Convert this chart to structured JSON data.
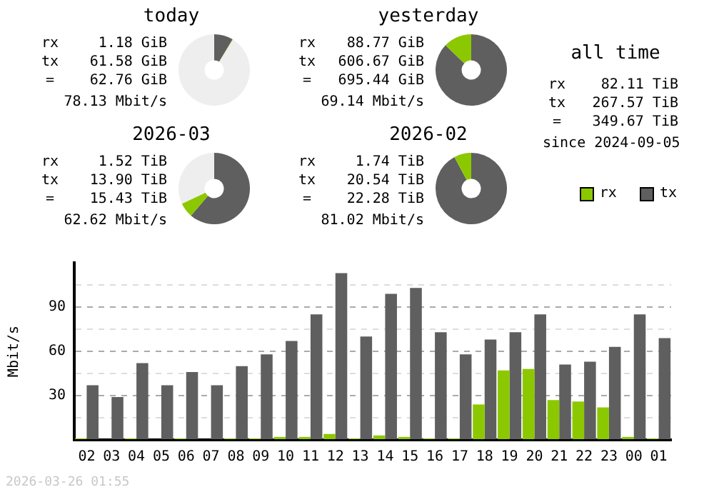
{
  "chart_data": [
    {
      "type": "donut",
      "title": "today",
      "categories": [
        null,
        null,
        null
      ],
      "values": [
        8.6,
        0.2,
        91.2
      ],
      "colors": [
        "#5f5f5f",
        "#8cc800",
        "#eeeeee"
      ],
      "annotations": [
        "rx",
        "1.18 GiB",
        "tx",
        "61.58 GiB",
        "=",
        "62.76 GiB",
        "78.13 Mbit/s"
      ]
    },
    {
      "type": "donut",
      "title": "yesterday",
      "categories": [
        null,
        null
      ],
      "values": [
        87.2,
        12.8
      ],
      "colors": [
        "#5f5f5f",
        "#8cc800"
      ],
      "annotations": [
        "rx",
        "88.77 GiB",
        "tx",
        "606.67 GiB",
        "=",
        "695.44 GiB",
        "69.14 Mbit/s"
      ]
    },
    {
      "type": "other",
      "title": "all time",
      "annotations": [
        "rx",
        "82.11 TiB",
        "tx",
        "267.57 TiB",
        "=",
        "349.67 TiB",
        "since 2024-09-05"
      ]
    },
    {
      "type": "donut",
      "title": "2026-03",
      "categories": [
        null,
        null,
        null
      ],
      "values": [
        61.3,
        6.7,
        32.0
      ],
      "colors": [
        "#5f5f5f",
        "#8cc800",
        "#eeeeee"
      ],
      "annotations": [
        "rx",
        "1.52 TiB",
        "tx",
        "13.90 TiB",
        "=",
        "15.43 TiB",
        "62.62 Mbit/s"
      ]
    },
    {
      "type": "donut",
      "title": "2026-02",
      "categories": [
        null,
        null
      ],
      "values": [
        92.2,
        7.8
      ],
      "colors": [
        "#5f5f5f",
        "#8cc800"
      ],
      "annotations": [
        "rx",
        "1.74 TiB",
        "tx",
        "20.54 TiB",
        "=",
        "22.28 TiB",
        "81.02 Mbit/s"
      ]
    },
    {
      "type": "bar",
      "ylabel": "Mbit/s",
      "categories": [
        "02",
        "03",
        "04",
        "05",
        "06",
        "07",
        "08",
        "09",
        "10",
        "11",
        "12",
        "13",
        "14",
        "15",
        "16",
        "17",
        "18",
        "19",
        "20",
        "21",
        "22",
        "23",
        "00",
        "01"
      ],
      "series": [
        {
          "name": "rx",
          "color": "#8cc800",
          "values": [
            1,
            0,
            1,
            0,
            1,
            0,
            1,
            1,
            2,
            2,
            4,
            1,
            3,
            2,
            1,
            1,
            24,
            47,
            48,
            27,
            26,
            22,
            2,
            1
          ]
        },
        {
          "name": "tx",
          "color": "#5f5f5f",
          "values": [
            37,
            29,
            52,
            37,
            46,
            37,
            50,
            58,
            67,
            85,
            113,
            70,
            99,
            103,
            73,
            58,
            68,
            73,
            85,
            51,
            53,
            63,
            85,
            69
          ]
        }
      ],
      "ylim": [
        0,
        120
      ],
      "yticks": [
        {
          "value": 0,
          "label": null
        },
        {
          "value": 15,
          "label": null
        },
        30,
        {
          "value": 45,
          "label": null
        },
        60,
        {
          "value": 75,
          "label": null
        },
        90,
        {
          "value": 105,
          "label": null
        }
      ],
      "grid": "y",
      "legend": "top right",
      "annotations": [
        "2026-03-26 01:55"
      ]
    }
  ]
}
